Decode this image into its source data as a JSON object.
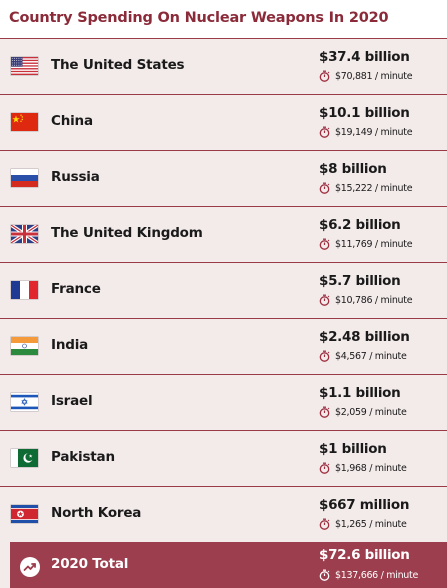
{
  "chart_data": {
    "type": "table",
    "title": "Country Spending On Nuclear Weapons In 2020",
    "rows": [
      {
        "country": "The United States",
        "amount": "$37.4 billion",
        "per_minute": "$70,881",
        "flag": "us-flag-icon",
        "value_billion": 37.4
      },
      {
        "country": "China",
        "amount": "$10.1 billion",
        "per_minute": "$19,149",
        "flag": "china-flag-icon",
        "value_billion": 10.1
      },
      {
        "country": "Russia",
        "amount": "$8 billion",
        "per_minute": "$15,222",
        "flag": "russia-flag-icon",
        "value_billion": 8
      },
      {
        "country": "The United Kingdom",
        "amount": "$6.2 billion",
        "per_minute": "$11,769",
        "flag": "uk-flag-icon",
        "value_billion": 6.2
      },
      {
        "country": "France",
        "amount": "$5.7 billion",
        "per_minute": "$10,786",
        "flag": "france-flag-icon",
        "value_billion": 5.7
      },
      {
        "country": "India",
        "amount": "$2.48 billion",
        "per_minute": "$4,567",
        "flag": "india-flag-icon",
        "value_billion": 2.48
      },
      {
        "country": "Israel",
        "amount": "$1.1 billion",
        "per_minute": "$2,059",
        "flag": "israel-flag-icon",
        "value_billion": 1.1
      },
      {
        "country": "Pakistan",
        "amount": "$1 billion",
        "per_minute": "$1,968",
        "flag": "pakistan-flag-icon",
        "value_billion": 1
      },
      {
        "country": "North Korea",
        "amount": "$667 million",
        "per_minute": "$1,265",
        "flag": "north-korea-flag-icon",
        "value_billion": 0.667
      }
    ],
    "total": {
      "label": "2020 Total",
      "amount": "$72.6 billion",
      "per_minute": "$137,666",
      "value_billion": 72.6
    },
    "per_minute_suffix": "/ minute"
  },
  "colors": {
    "accent": "#8b2b3a",
    "divider": "#9b3a49",
    "background": "#f3eaea",
    "total_row": "#9c3e4e"
  },
  "icons": {
    "timer": "stopwatch-icon",
    "trend": "trend-up-icon"
  }
}
